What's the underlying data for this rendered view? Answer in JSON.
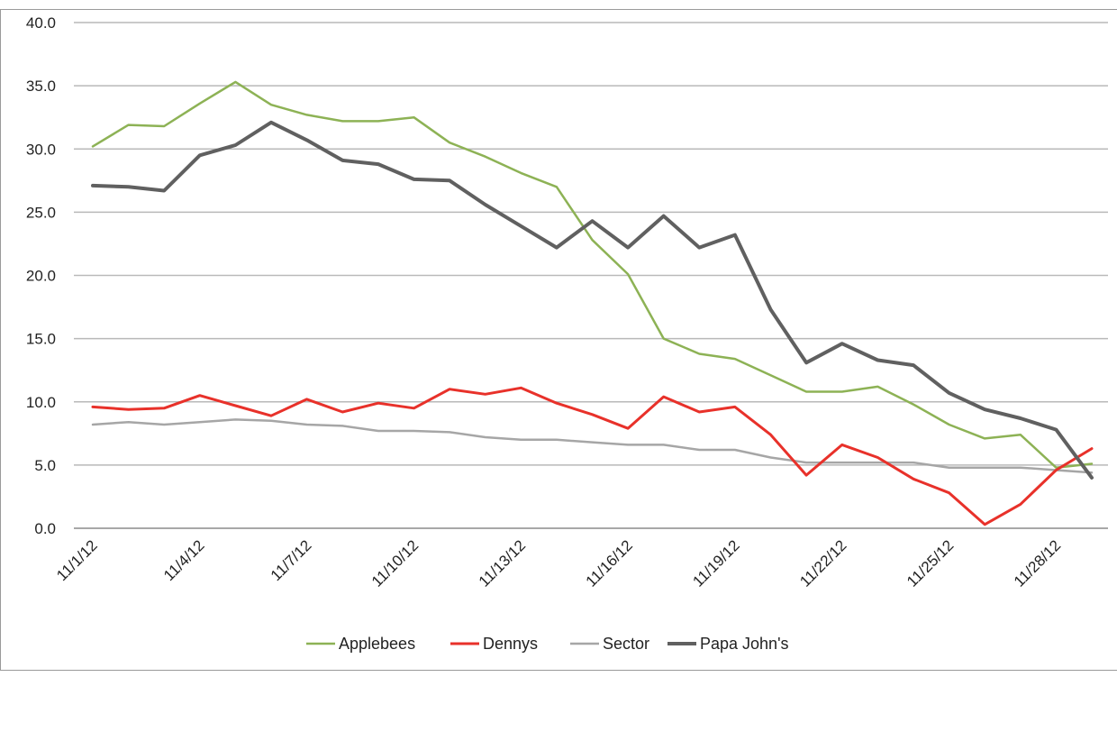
{
  "chart_data": {
    "type": "line",
    "title": "",
    "xlabel": "",
    "ylabel": "",
    "ylim": [
      0,
      40
    ],
    "yticks": [
      "0.0",
      "5.0",
      "10.0",
      "15.0",
      "20.0",
      "25.0",
      "30.0",
      "35.0",
      "40.0"
    ],
    "grid": true,
    "legend_position": "bottom",
    "x": [
      "11/1/12",
      "11/2/12",
      "11/3/12",
      "11/4/12",
      "11/5/12",
      "11/6/12",
      "11/7/12",
      "11/8/12",
      "11/9/12",
      "11/10/12",
      "11/11/12",
      "11/12/12",
      "11/13/12",
      "11/14/12",
      "11/15/12",
      "11/16/12",
      "11/17/12",
      "11/18/12",
      "11/19/12",
      "11/20/12",
      "11/21/12",
      "11/22/12",
      "11/23/12",
      "11/24/12",
      "11/25/12",
      "11/26/12",
      "11/27/12",
      "11/28/12",
      "11/29/12"
    ],
    "xtick_labels": [
      "11/1/12",
      "11/4/12",
      "11/7/12",
      "11/10/12",
      "11/13/12",
      "11/16/12",
      "11/19/12",
      "11/22/12",
      "11/25/12",
      "11/28/12"
    ],
    "series": [
      {
        "name": "Applebees",
        "color": "#8db255",
        "width": 2.5,
        "values": [
          30.2,
          31.9,
          31.8,
          33.6,
          35.3,
          33.5,
          32.7,
          32.2,
          32.2,
          32.5,
          30.5,
          29.4,
          28.1,
          27.0,
          22.8,
          20.1,
          15.0,
          13.8,
          13.4,
          12.1,
          10.8,
          10.8,
          11.2,
          9.8,
          8.2,
          7.1,
          7.4,
          4.8,
          5.1
        ]
      },
      {
        "name": "Dennys",
        "color": "#e8312a",
        "width": 3,
        "values": [
          9.6,
          9.4,
          9.5,
          10.5,
          9.7,
          8.9,
          10.2,
          9.2,
          9.9,
          9.5,
          11.0,
          10.6,
          11.1,
          9.9,
          9.0,
          7.9,
          10.4,
          9.2,
          9.6,
          7.4,
          4.2,
          6.6,
          5.6,
          3.9,
          2.8,
          0.3,
          1.9,
          4.6,
          6.3
        ]
      },
      {
        "name": "Sector",
        "color": "#a6a6a6",
        "width": 2.5,
        "values": [
          8.2,
          8.4,
          8.2,
          8.4,
          8.6,
          8.5,
          8.2,
          8.1,
          7.7,
          7.7,
          7.6,
          7.2,
          7.0,
          7.0,
          6.8,
          6.6,
          6.6,
          6.2,
          6.2,
          5.6,
          5.2,
          5.2,
          5.2,
          5.2,
          4.8,
          4.8,
          4.8,
          4.6,
          4.4
        ]
      },
      {
        "name": "Papa John's",
        "color": "#606060",
        "width": 4,
        "values": [
          27.1,
          27.0,
          26.7,
          29.5,
          30.3,
          32.1,
          30.7,
          29.1,
          28.8,
          27.6,
          27.5,
          25.6,
          23.9,
          22.2,
          24.3,
          22.2,
          24.7,
          22.2,
          23.2,
          17.3,
          13.1,
          14.6,
          13.3,
          12.9,
          10.7,
          9.4,
          8.7,
          7.8,
          4.0
        ]
      }
    ]
  }
}
